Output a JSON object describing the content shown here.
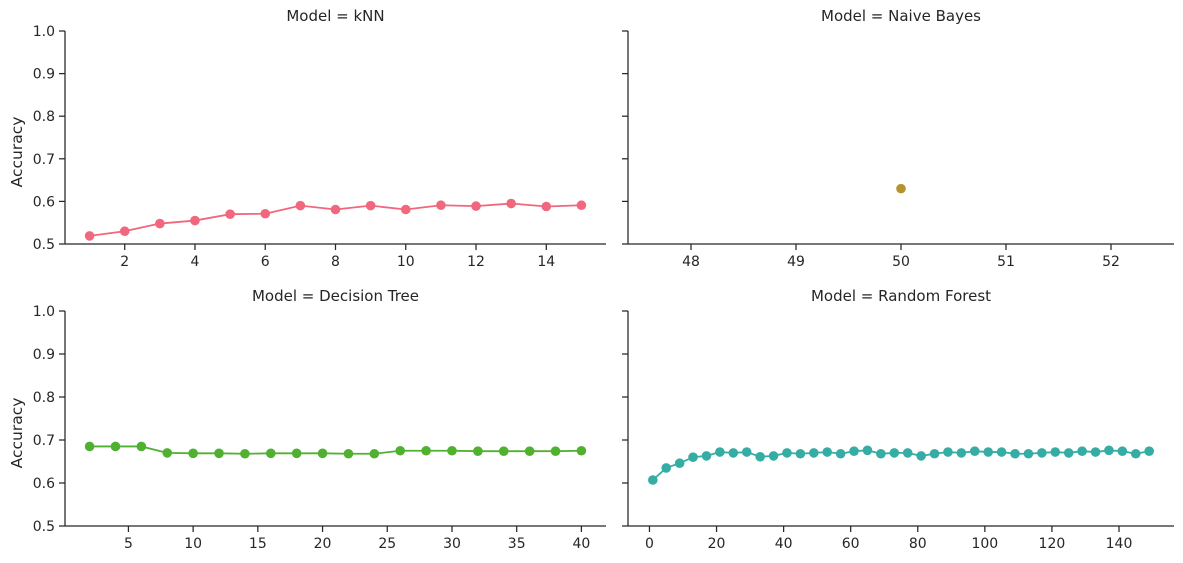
{
  "ylabel": "Accuracy",
  "chart_data": [
    {
      "type": "line",
      "title": "Model = kNN",
      "ylabel": "Accuracy",
      "ylim": [
        0.5,
        1.0
      ],
      "yticks": [
        "0.5",
        "0.6",
        "0.7",
        "0.8",
        "0.9",
        "1.0"
      ],
      "xlim": [
        0.3,
        15.7
      ],
      "xticks": [
        2,
        4,
        6,
        8,
        10,
        12,
        14
      ],
      "color": "#f0677e",
      "markers": true,
      "x": [
        1,
        2,
        3,
        4,
        5,
        6,
        7,
        8,
        9,
        10,
        11,
        12,
        13,
        14,
        15
      ],
      "y": [
        0.519,
        0.53,
        0.548,
        0.555,
        0.57,
        0.571,
        0.59,
        0.581,
        0.59,
        0.581,
        0.591,
        0.589,
        0.595,
        0.588,
        0.591
      ]
    },
    {
      "type": "scatter",
      "title": "Model = Naive Bayes",
      "ylim": [
        0.5,
        1.0
      ],
      "xlim": [
        47.4,
        52.6
      ],
      "xticks": [
        48,
        49,
        50,
        51,
        52
      ],
      "color": "#b6922f",
      "markers": true,
      "x": [
        50
      ],
      "y": [
        0.63
      ]
    },
    {
      "type": "line",
      "title": "Model = Decision Tree",
      "ylabel": "Accuracy",
      "ylim": [
        0.5,
        1.0
      ],
      "yticks": [
        "0.5",
        "0.6",
        "0.7",
        "0.8",
        "0.9",
        "1.0"
      ],
      "xlim": [
        0.1,
        41.9
      ],
      "xticks": [
        5,
        10,
        15,
        20,
        25,
        30,
        35,
        40
      ],
      "color": "#50b131",
      "markers": true,
      "x": [
        2,
        4,
        6,
        8,
        10,
        12,
        14,
        16,
        18,
        20,
        22,
        24,
        26,
        28,
        30,
        32,
        34,
        36,
        38,
        40
      ],
      "y": [
        0.685,
        0.685,
        0.685,
        0.67,
        0.669,
        0.669,
        0.668,
        0.669,
        0.669,
        0.669,
        0.668,
        0.668,
        0.675,
        0.675,
        0.675,
        0.674,
        0.674,
        0.674,
        0.674,
        0.675
      ]
    },
    {
      "type": "line",
      "title": "Model = Random Forest",
      "ylim": [
        0.5,
        1.0
      ],
      "xlim": [
        -6.4,
        156.4
      ],
      "xticks": [
        0,
        20,
        40,
        60,
        80,
        100,
        120,
        140
      ],
      "color": "#36ada4",
      "markers": true,
      "x": [
        1,
        5,
        9,
        13,
        17,
        21,
        25,
        29,
        33,
        37,
        41,
        45,
        49,
        53,
        57,
        61,
        65,
        69,
        73,
        77,
        81,
        85,
        89,
        93,
        97,
        101,
        105,
        109,
        113,
        117,
        121,
        125,
        129,
        133,
        137,
        141,
        145,
        149
      ],
      "y": [
        0.607,
        0.635,
        0.646,
        0.66,
        0.663,
        0.672,
        0.67,
        0.672,
        0.661,
        0.663,
        0.67,
        0.668,
        0.67,
        0.672,
        0.668,
        0.674,
        0.676,
        0.668,
        0.67,
        0.67,
        0.663,
        0.668,
        0.672,
        0.67,
        0.674,
        0.672,
        0.672,
        0.668,
        0.668,
        0.67,
        0.672,
        0.67,
        0.674,
        0.672,
        0.676,
        0.674,
        0.668,
        0.674
      ]
    }
  ]
}
